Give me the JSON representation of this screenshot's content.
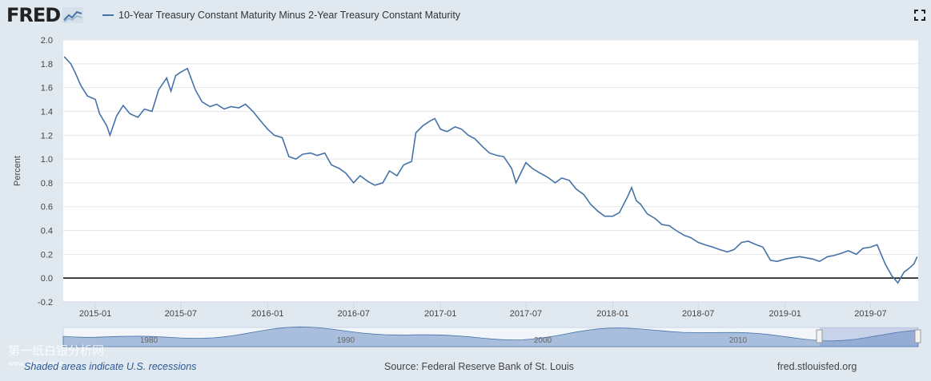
{
  "header": {
    "logo_text": "FRED",
    "series_title": "10-Year Treasury Constant Maturity Minus 2-Year Treasury Constant Maturity",
    "fullscreen_icon": "fullscreen-icon"
  },
  "chart_data": {
    "type": "line",
    "ylabel": "Percent",
    "ylim": [
      -0.2,
      2.0
    ],
    "yticks": [
      "2.0",
      "1.8",
      "1.6",
      "1.4",
      "1.2",
      "1.0",
      "0.8",
      "0.6",
      "0.4",
      "0.2",
      "0.0",
      "-0.2"
    ],
    "xticks": [
      "2015-01",
      "2015-07",
      "2016-01",
      "2016-07",
      "2017-01",
      "2017-07",
      "2018-01",
      "2018-07",
      "2019-01",
      "2019-07"
    ],
    "xrange": [
      "2014-10-25",
      "2019-10-10"
    ],
    "zero_line": true,
    "grid": true,
    "series": [
      {
        "name": "10-Year Treasury Constant Maturity Minus 2-Year Treasury Constant Maturity",
        "color": "#4572a7",
        "points": [
          [
            "2014-10-27",
            1.86
          ],
          [
            "2014-11-10",
            1.8
          ],
          [
            "2014-11-20",
            1.72
          ],
          [
            "2014-12-01",
            1.62
          ],
          [
            "2014-12-15",
            1.53
          ],
          [
            "2015-01-01",
            1.5
          ],
          [
            "2015-01-10",
            1.38
          ],
          [
            "2015-01-25",
            1.28
          ],
          [
            "2015-02-01",
            1.2
          ],
          [
            "2015-02-15",
            1.36
          ],
          [
            "2015-03-01",
            1.45
          ],
          [
            "2015-03-15",
            1.38
          ],
          [
            "2015-04-01",
            1.35
          ],
          [
            "2015-04-15",
            1.42
          ],
          [
            "2015-05-01",
            1.4
          ],
          [
            "2015-05-15",
            1.58
          ],
          [
            "2015-06-01",
            1.68
          ],
          [
            "2015-06-10",
            1.57
          ],
          [
            "2015-06-20",
            1.7
          ],
          [
            "2015-07-01",
            1.73
          ],
          [
            "2015-07-15",
            1.76
          ],
          [
            "2015-08-01",
            1.58
          ],
          [
            "2015-08-15",
            1.48
          ],
          [
            "2015-09-01",
            1.44
          ],
          [
            "2015-09-15",
            1.46
          ],
          [
            "2015-10-01",
            1.42
          ],
          [
            "2015-10-15",
            1.44
          ],
          [
            "2015-11-01",
            1.43
          ],
          [
            "2015-11-15",
            1.46
          ],
          [
            "2015-12-01",
            1.4
          ],
          [
            "2015-12-15",
            1.33
          ],
          [
            "2016-01-01",
            1.25
          ],
          [
            "2016-01-15",
            1.2
          ],
          [
            "2016-02-01",
            1.18
          ],
          [
            "2016-02-15",
            1.02
          ],
          [
            "2016-03-01",
            1.0
          ],
          [
            "2016-03-15",
            1.04
          ],
          [
            "2016-04-01",
            1.05
          ],
          [
            "2016-04-15",
            1.03
          ],
          [
            "2016-05-01",
            1.05
          ],
          [
            "2016-05-15",
            0.95
          ],
          [
            "2016-06-01",
            0.92
          ],
          [
            "2016-06-15",
            0.88
          ],
          [
            "2016-07-01",
            0.8
          ],
          [
            "2016-07-15",
            0.86
          ],
          [
            "2016-08-01",
            0.81
          ],
          [
            "2016-08-15",
            0.78
          ],
          [
            "2016-09-01",
            0.8
          ],
          [
            "2016-09-15",
            0.9
          ],
          [
            "2016-10-01",
            0.86
          ],
          [
            "2016-10-15",
            0.95
          ],
          [
            "2016-11-01",
            0.98
          ],
          [
            "2016-11-10",
            1.22
          ],
          [
            "2016-11-25",
            1.28
          ],
          [
            "2016-12-10",
            1.32
          ],
          [
            "2016-12-20",
            1.34
          ],
          [
            "2017-01-01",
            1.25
          ],
          [
            "2017-01-15",
            1.23
          ],
          [
            "2017-02-01",
            1.27
          ],
          [
            "2017-02-15",
            1.25
          ],
          [
            "2017-03-01",
            1.2
          ],
          [
            "2017-03-15",
            1.17
          ],
          [
            "2017-04-01",
            1.1
          ],
          [
            "2017-04-15",
            1.05
          ],
          [
            "2017-05-01",
            1.03
          ],
          [
            "2017-05-15",
            1.02
          ],
          [
            "2017-06-01",
            0.92
          ],
          [
            "2017-06-10",
            0.8
          ],
          [
            "2017-06-20",
            0.88
          ],
          [
            "2017-07-01",
            0.97
          ],
          [
            "2017-07-15",
            0.92
          ],
          [
            "2017-08-01",
            0.88
          ],
          [
            "2017-08-15",
            0.85
          ],
          [
            "2017-09-01",
            0.8
          ],
          [
            "2017-09-15",
            0.84
          ],
          [
            "2017-10-01",
            0.82
          ],
          [
            "2017-10-15",
            0.75
          ],
          [
            "2017-11-01",
            0.7
          ],
          [
            "2017-11-15",
            0.62
          ],
          [
            "2017-12-01",
            0.56
          ],
          [
            "2017-12-15",
            0.52
          ],
          [
            "2018-01-01",
            0.52
          ],
          [
            "2018-01-15",
            0.55
          ],
          [
            "2018-02-01",
            0.68
          ],
          [
            "2018-02-10",
            0.76
          ],
          [
            "2018-02-20",
            0.65
          ],
          [
            "2018-03-01",
            0.62
          ],
          [
            "2018-03-15",
            0.54
          ],
          [
            "2018-04-01",
            0.5
          ],
          [
            "2018-04-15",
            0.45
          ],
          [
            "2018-05-01",
            0.44
          ],
          [
            "2018-05-15",
            0.4
          ],
          [
            "2018-06-01",
            0.36
          ],
          [
            "2018-06-15",
            0.34
          ],
          [
            "2018-07-01",
            0.3
          ],
          [
            "2018-07-15",
            0.28
          ],
          [
            "2018-08-01",
            0.26
          ],
          [
            "2018-08-15",
            0.24
          ],
          [
            "2018-09-01",
            0.22
          ],
          [
            "2018-09-15",
            0.24
          ],
          [
            "2018-10-01",
            0.3
          ],
          [
            "2018-10-15",
            0.31
          ],
          [
            "2018-11-01",
            0.28
          ],
          [
            "2018-11-15",
            0.26
          ],
          [
            "2018-12-01",
            0.15
          ],
          [
            "2018-12-15",
            0.14
          ],
          [
            "2019-01-01",
            0.16
          ],
          [
            "2019-01-15",
            0.17
          ],
          [
            "2019-02-01",
            0.18
          ],
          [
            "2019-02-15",
            0.17
          ],
          [
            "2019-03-01",
            0.16
          ],
          [
            "2019-03-15",
            0.14
          ],
          [
            "2019-04-01",
            0.18
          ],
          [
            "2019-04-15",
            0.19
          ],
          [
            "2019-05-01",
            0.21
          ],
          [
            "2019-05-15",
            0.23
          ],
          [
            "2019-06-01",
            0.2
          ],
          [
            "2019-06-15",
            0.25
          ],
          [
            "2019-07-01",
            0.26
          ],
          [
            "2019-07-15",
            0.28
          ],
          [
            "2019-08-01",
            0.12
          ],
          [
            "2019-08-15",
            0.02
          ],
          [
            "2019-08-28",
            -0.04
          ],
          [
            "2019-09-10",
            0.05
          ],
          [
            "2019-09-20",
            0.08
          ],
          [
            "2019-10-01",
            0.12
          ],
          [
            "2019-10-08",
            0.18
          ]
        ]
      }
    ],
    "navigator": {
      "labels": [
        "1980",
        "1990",
        "2000",
        "2010"
      ]
    }
  },
  "footer": {
    "recessions_link": "Shaded areas indicate U.S. recessions",
    "source": "Source: Federal Reserve Bank of St. Louis",
    "site": "fred.stlouisfed.org"
  },
  "watermark": {
    "line1": "第一纸白银分析网",
    "line2": "www.silver.org.cn"
  }
}
